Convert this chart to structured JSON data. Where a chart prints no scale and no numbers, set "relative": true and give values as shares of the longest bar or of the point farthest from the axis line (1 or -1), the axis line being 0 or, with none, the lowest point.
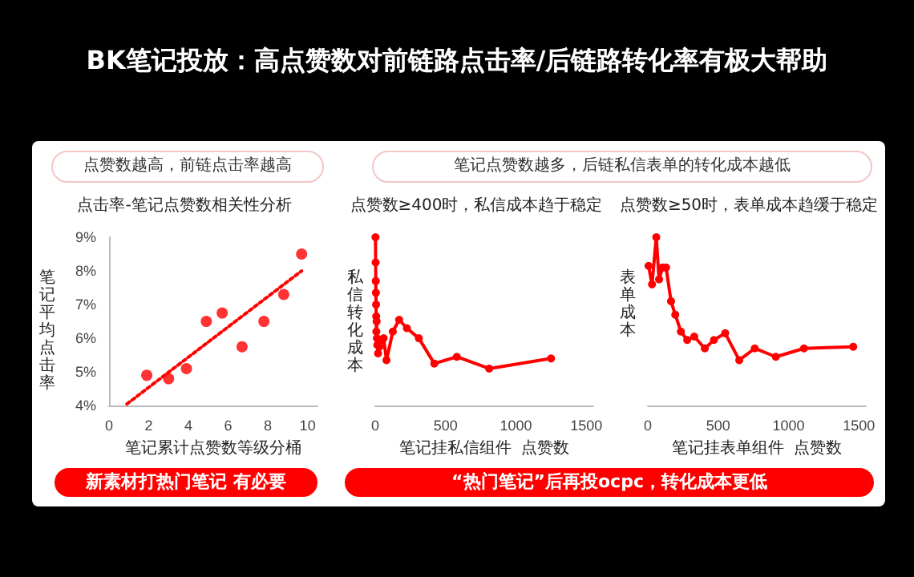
{
  "chart_data": [
    {
      "type": "scatter",
      "title": "BK笔记投放：高点赞数对前链路点击率/后链路转化率有极大帮助",
      "subtitle": "点赞数越高，前链点击率越高",
      "xlabel": "笔记累计点赞数等级分桶",
      "ylabel": "笔记平均点击率",
      "annotations": [
        "点击率-笔记点赞数相关性分析",
        "新素材打热门笔记 有必要"
      ],
      "xlim": [
        0,
        10.5
      ],
      "xticks": [
        0,
        2,
        4,
        6,
        8,
        10
      ],
      "ylim": [
        4,
        9
      ],
      "yticks": [
        {
          "value": 4,
          "label": "4%"
        },
        {
          "value": 5,
          "label": "5%"
        },
        {
          "value": 6,
          "label": "6%"
        },
        {
          "value": 7,
          "label": "7%"
        },
        {
          "value": 8,
          "label": "8%"
        },
        {
          "value": 9,
          "label": "9%"
        }
      ],
      "grid": false,
      "series": [
        {
          "type": "scatter",
          "color": "#ff0000",
          "marker": "circle",
          "x": [
            1.9,
            3.0,
            3.9,
            4.9,
            5.7,
            6.7,
            7.8,
            8.8,
            9.7
          ],
          "values": [
            4.9,
            4.8,
            5.1,
            6.5,
            6.75,
            5.75,
            6.5,
            7.3,
            8.5
          ]
        },
        {
          "type": "line",
          "color": "#ff0000",
          "marker": "none",
          "line_style": "dotted",
          "x": [
            0.9,
            9.7
          ],
          "values": [
            4.05,
            8.0
          ]
        }
      ]
    },
    {
      "type": "line",
      "subtitle": "笔记点赞数越多，后链私信表单的转化成本越低",
      "xlabel": "笔记挂私信组件  点赞数",
      "ylabel": "私信转化成本",
      "annotations": [
        "点赞数≥400时，私信成本趋于稳定",
        "“热门笔记”后再投ocpc，转化成本更低"
      ],
      "relative": true,
      "xlim": [
        0,
        1550
      ],
      "xticks": [
        0,
        500,
        1000,
        1500
      ],
      "grid": false,
      "marker": "circle",
      "line_style": "solid",
      "series": [
        {
          "color": "#ff0000",
          "x": [
            2,
            3,
            4,
            5,
            6,
            7,
            8,
            10,
            12,
            15,
            20,
            30,
            50,
            60,
            80,
            125,
            170,
            225,
            310,
            420,
            580,
            810,
            1250
          ],
          "values": [
            1,
            0.85,
            0.74,
            0.67,
            0.6,
            0.53,
            0.44,
            0.5,
            0.4,
            0.36,
            0.31,
            0.35,
            0.39,
            0.4,
            0.27,
            0.44,
            0.51,
            0.46,
            0.4,
            0.25,
            0.29,
            0.22,
            0.28
          ]
        }
      ]
    },
    {
      "type": "line",
      "xlabel": "笔记挂表单组件  点赞数",
      "ylabel": "表单成本",
      "annotations": [
        "点赞数≥50时，表单成本趋缓于稳定"
      ],
      "relative": true,
      "xlim": [
        0,
        1550
      ],
      "xticks": [
        0,
        500,
        1000,
        1500
      ],
      "grid": false,
      "marker": "circle",
      "line_style": "solid",
      "series": [
        {
          "color": "#ff0000",
          "x": [
            5,
            30,
            60,
            80,
            105,
            130,
            165,
            195,
            235,
            280,
            330,
            405,
            470,
            550,
            650,
            760,
            910,
            1110,
            1460
          ],
          "values": [
            0.83,
            0.72,
            1,
            0.75,
            0.82,
            0.82,
            0.62,
            0.54,
            0.44,
            0.39,
            0.41,
            0.34,
            0.39,
            0.43,
            0.27,
            0.34,
            0.29,
            0.34,
            0.35
          ]
        }
      ]
    }
  ]
}
